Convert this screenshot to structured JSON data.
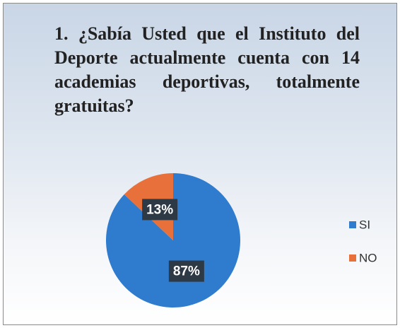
{
  "chart_data": {
    "type": "pie",
    "title": "1. ¿Sabía Usted que el Instituto del Deporte actualmente cuenta con 14 academias deportivas, totalmente gratuitas?",
    "categories": [
      "SI",
      "NO"
    ],
    "values": [
      87,
      13
    ],
    "value_labels": [
      "87%",
      "13%"
    ],
    "colors": [
      "#2f7ccf",
      "#e8703a"
    ],
    "legend": "right"
  }
}
